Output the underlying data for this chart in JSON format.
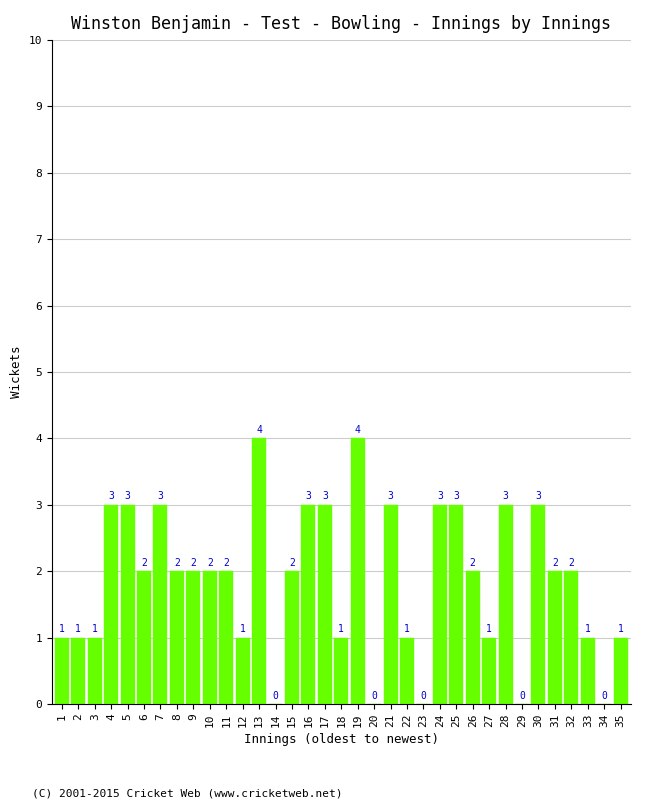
{
  "title": "Winston Benjamin - Test - Bowling - Innings by Innings",
  "xlabel": "Innings (oldest to newest)",
  "ylabel": "Wickets",
  "bar_color": "#66ff00",
  "bar_edge_color": "#66ff00",
  "label_color": "#0000cc",
  "background_color": "#ffffff",
  "grid_color": "#cccccc",
  "ylim": [
    0,
    10
  ],
  "yticks": [
    0,
    1,
    2,
    3,
    4,
    5,
    6,
    7,
    8,
    9,
    10
  ],
  "innings": [
    1,
    2,
    3,
    4,
    5,
    6,
    7,
    8,
    9,
    10,
    11,
    12,
    13,
    14,
    15,
    16,
    17,
    18,
    19,
    20,
    21,
    22,
    23,
    24,
    25,
    26,
    27,
    28,
    29,
    30,
    31,
    32,
    33,
    34,
    35
  ],
  "wickets": [
    1,
    1,
    1,
    3,
    3,
    2,
    3,
    2,
    2,
    2,
    2,
    1,
    4,
    0,
    2,
    3,
    3,
    1,
    4,
    0,
    3,
    1,
    0,
    3,
    3,
    2,
    1,
    3,
    0,
    3,
    2,
    2,
    1,
    0,
    1
  ],
  "footer": "(C) 2001-2015 Cricket Web (www.cricketweb.net)",
  "title_fontsize": 12,
  "axis_label_fontsize": 9,
  "tick_fontsize": 8,
  "label_fontsize": 7,
  "footer_fontsize": 8
}
